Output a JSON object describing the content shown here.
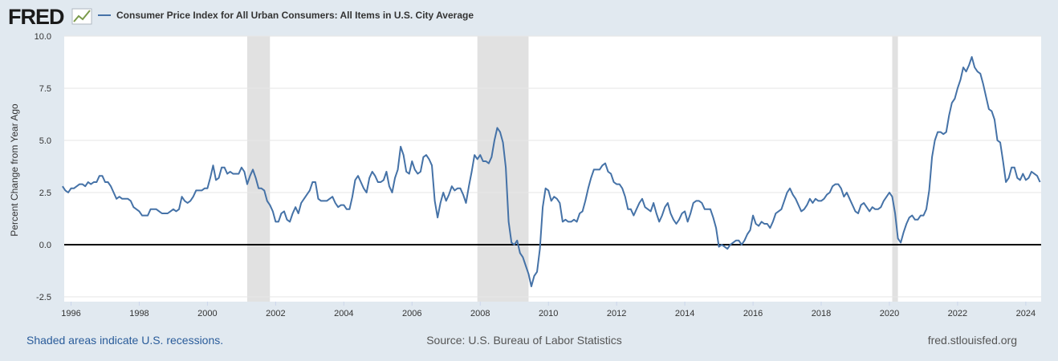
{
  "logo": "FRED",
  "footer": {
    "note": "Shaded areas indicate U.S. recessions.",
    "source": "Source: U.S. Bureau of Labor Statistics",
    "site": "fred.stlouisfed.org"
  },
  "chart_data": {
    "type": "line",
    "y_label": "Percent Change from Year Ago",
    "xlim": [
      1995.8,
      2024.45
    ],
    "xticks": [
      1996,
      1998,
      2000,
      2002,
      2004,
      2006,
      2008,
      2010,
      2012,
      2014,
      2016,
      2018,
      2020,
      2022,
      2024
    ],
    "ylim": [
      -2.5,
      10
    ],
    "yticks": [
      {
        "value": -2.5,
        "label": "-2.5"
      },
      {
        "value": 0,
        "label": "0.0"
      },
      {
        "value": 2.5,
        "label": "2.5"
      },
      {
        "value": 5,
        "label": "5.0"
      },
      {
        "value": 7.5,
        "label": "7.5"
      },
      {
        "value": 10,
        "label": "10.0"
      }
    ],
    "grid": true,
    "recessions": [
      [
        2001.167,
        2001.833
      ],
      [
        2007.917,
        2009.417
      ],
      [
        2020.083,
        2020.25
      ]
    ],
    "series": [
      {
        "name": "Consumer Price Index for All Urban Consumers: All Items in U.S. City Average",
        "color": "#4572a7",
        "x": [
          1995.75,
          1995.833,
          1995.917,
          1996,
          1996.083,
          1996.167,
          1996.25,
          1996.333,
          1996.417,
          1996.5,
          1996.583,
          1996.667,
          1996.75,
          1996.833,
          1996.917,
          1997,
          1997.083,
          1997.167,
          1997.25,
          1997.333,
          1997.417,
          1997.5,
          1997.583,
          1997.667,
          1997.75,
          1997.833,
          1997.917,
          1998,
          1998.083,
          1998.167,
          1998.25,
          1998.333,
          1998.417,
          1998.5,
          1998.583,
          1998.667,
          1998.75,
          1998.833,
          1998.917,
          1999,
          1999.083,
          1999.167,
          1999.25,
          1999.333,
          1999.417,
          1999.5,
          1999.583,
          1999.667,
          1999.75,
          1999.833,
          1999.917,
          2000,
          2000.083,
          2000.167,
          2000.25,
          2000.333,
          2000.417,
          2000.5,
          2000.583,
          2000.667,
          2000.75,
          2000.833,
          2000.917,
          2001,
          2001.083,
          2001.167,
          2001.25,
          2001.333,
          2001.417,
          2001.5,
          2001.583,
          2001.667,
          2001.75,
          2001.833,
          2001.917,
          2002,
          2002.083,
          2002.167,
          2002.25,
          2002.333,
          2002.417,
          2002.5,
          2002.583,
          2002.667,
          2002.75,
          2002.833,
          2002.917,
          2003,
          2003.083,
          2003.167,
          2003.25,
          2003.333,
          2003.417,
          2003.5,
          2003.583,
          2003.667,
          2003.75,
          2003.833,
          2003.917,
          2004,
          2004.083,
          2004.167,
          2004.25,
          2004.333,
          2004.417,
          2004.5,
          2004.583,
          2004.667,
          2004.75,
          2004.833,
          2004.917,
          2005,
          2005.083,
          2005.167,
          2005.25,
          2005.333,
          2005.417,
          2005.5,
          2005.583,
          2005.667,
          2005.75,
          2005.833,
          2005.917,
          2006,
          2006.083,
          2006.167,
          2006.25,
          2006.333,
          2006.417,
          2006.5,
          2006.583,
          2006.667,
          2006.75,
          2006.833,
          2006.917,
          2007,
          2007.083,
          2007.167,
          2007.25,
          2007.333,
          2007.417,
          2007.5,
          2007.583,
          2007.667,
          2007.75,
          2007.833,
          2007.917,
          2008,
          2008.083,
          2008.167,
          2008.25,
          2008.333,
          2008.417,
          2008.5,
          2008.583,
          2008.667,
          2008.75,
          2008.833,
          2008.917,
          2009,
          2009.083,
          2009.167,
          2009.25,
          2009.333,
          2009.417,
          2009.5,
          2009.583,
          2009.667,
          2009.75,
          2009.833,
          2009.917,
          2010,
          2010.083,
          2010.167,
          2010.25,
          2010.333,
          2010.417,
          2010.5,
          2010.583,
          2010.667,
          2010.75,
          2010.833,
          2010.917,
          2011,
          2011.083,
          2011.167,
          2011.25,
          2011.333,
          2011.417,
          2011.5,
          2011.583,
          2011.667,
          2011.75,
          2011.833,
          2011.917,
          2012,
          2012.083,
          2012.167,
          2012.25,
          2012.333,
          2012.417,
          2012.5,
          2012.583,
          2012.667,
          2012.75,
          2012.833,
          2012.917,
          2013,
          2013.083,
          2013.167,
          2013.25,
          2013.333,
          2013.417,
          2013.5,
          2013.583,
          2013.667,
          2013.75,
          2013.833,
          2013.917,
          2014,
          2014.083,
          2014.167,
          2014.25,
          2014.333,
          2014.417,
          2014.5,
          2014.583,
          2014.667,
          2014.75,
          2014.833,
          2014.917,
          2015,
          2015.083,
          2015.167,
          2015.25,
          2015.333,
          2015.417,
          2015.5,
          2015.583,
          2015.667,
          2015.75,
          2015.833,
          2015.917,
          2016,
          2016.083,
          2016.167,
          2016.25,
          2016.333,
          2016.417,
          2016.5,
          2016.583,
          2016.667,
          2016.75,
          2016.833,
          2016.917,
          2017,
          2017.083,
          2017.167,
          2017.25,
          2017.333,
          2017.417,
          2017.5,
          2017.583,
          2017.667,
          2017.75,
          2017.833,
          2017.917,
          2018,
          2018.083,
          2018.167,
          2018.25,
          2018.333,
          2018.417,
          2018.5,
          2018.583,
          2018.667,
          2018.75,
          2018.833,
          2018.917,
          2019,
          2019.083,
          2019.167,
          2019.25,
          2019.333,
          2019.417,
          2019.5,
          2019.583,
          2019.667,
          2019.75,
          2019.833,
          2019.917,
          2020,
          2020.083,
          2020.167,
          2020.25,
          2020.333,
          2020.417,
          2020.5,
          2020.583,
          2020.667,
          2020.75,
          2020.833,
          2020.917,
          2021,
          2021.083,
          2021.167,
          2021.25,
          2021.333,
          2021.417,
          2021.5,
          2021.583,
          2021.667,
          2021.75,
          2021.833,
          2021.917,
          2022,
          2022.083,
          2022.167,
          2022.25,
          2022.333,
          2022.417,
          2022.5,
          2022.583,
          2022.667,
          2022.75,
          2022.833,
          2022.917,
          2023,
          2023.083,
          2023.167,
          2023.25,
          2023.333,
          2023.417,
          2023.5,
          2023.583,
          2023.667,
          2023.75,
          2023.833,
          2023.917,
          2024,
          2024.083,
          2024.167,
          2024.25,
          2024.333,
          2024.417
        ],
        "values": [
          2.8,
          2.6,
          2.5,
          2.7,
          2.7,
          2.8,
          2.9,
          2.9,
          2.8,
          3.0,
          2.9,
          3.0,
          3.0,
          3.3,
          3.3,
          3.0,
          3.0,
          2.8,
          2.5,
          2.2,
          2.3,
          2.2,
          2.2,
          2.2,
          2.1,
          1.8,
          1.7,
          1.6,
          1.4,
          1.4,
          1.4,
          1.7,
          1.7,
          1.7,
          1.6,
          1.5,
          1.5,
          1.5,
          1.6,
          1.7,
          1.6,
          1.7,
          2.3,
          2.1,
          2.0,
          2.1,
          2.3,
          2.6,
          2.6,
          2.6,
          2.7,
          2.7,
          3.2,
          3.8,
          3.1,
          3.2,
          3.7,
          3.7,
          3.4,
          3.5,
          3.4,
          3.4,
          3.4,
          3.7,
          3.5,
          2.9,
          3.3,
          3.6,
          3.2,
          2.7,
          2.7,
          2.6,
          2.1,
          1.9,
          1.6,
          1.1,
          1.1,
          1.5,
          1.6,
          1.2,
          1.1,
          1.5,
          1.8,
          1.5,
          2.0,
          2.2,
          2.4,
          2.6,
          3.0,
          3.0,
          2.2,
          2.1,
          2.1,
          2.1,
          2.2,
          2.3,
          2.0,
          1.8,
          1.9,
          1.9,
          1.7,
          1.7,
          2.3,
          3.1,
          3.3,
          3.0,
          2.7,
          2.5,
          3.2,
          3.5,
          3.3,
          3.0,
          3.0,
          3.1,
          3.5,
          2.8,
          2.5,
          3.2,
          3.6,
          4.7,
          4.3,
          3.5,
          3.4,
          4.0,
          3.6,
          3.4,
          3.5,
          4.2,
          4.3,
          4.1,
          3.8,
          2.1,
          1.3,
          2.0,
          2.5,
          2.1,
          2.4,
          2.8,
          2.6,
          2.7,
          2.7,
          2.4,
          2.0,
          2.8,
          3.5,
          4.3,
          4.1,
          4.3,
          4.0,
          4.0,
          3.9,
          4.2,
          5.0,
          5.6,
          5.4,
          4.9,
          3.7,
          1.1,
          0.1,
          0.0,
          0.2,
          -0.4,
          -0.6,
          -1.0,
          -1.4,
          -2.0,
          -1.5,
          -1.3,
          -0.2,
          1.8,
          2.7,
          2.6,
          2.1,
          2.3,
          2.2,
          2.0,
          1.1,
          1.2,
          1.1,
          1.1,
          1.2,
          1.1,
          1.5,
          1.6,
          2.1,
          2.7,
          3.2,
          3.6,
          3.6,
          3.6,
          3.8,
          3.9,
          3.5,
          3.4,
          3.0,
          2.9,
          2.9,
          2.7,
          2.3,
          1.7,
          1.7,
          1.4,
          1.7,
          2.0,
          2.2,
          1.8,
          1.7,
          1.6,
          2.0,
          1.5,
          1.1,
          1.4,
          1.8,
          2.0,
          1.5,
          1.2,
          1.0,
          1.2,
          1.5,
          1.6,
          1.1,
          1.5,
          2.0,
          2.1,
          2.1,
          2.0,
          1.7,
          1.7,
          1.7,
          1.3,
          0.8,
          -0.1,
          0.0,
          -0.1,
          -0.2,
          0.0,
          0.1,
          0.2,
          0.2,
          0.0,
          0.2,
          0.5,
          0.7,
          1.4,
          1.0,
          0.9,
          1.1,
          1.0,
          1.0,
          0.8,
          1.1,
          1.5,
          1.6,
          1.7,
          2.1,
          2.5,
          2.7,
          2.4,
          2.2,
          1.9,
          1.6,
          1.7,
          1.9,
          2.2,
          2.0,
          2.2,
          2.1,
          2.1,
          2.2,
          2.4,
          2.5,
          2.8,
          2.9,
          2.9,
          2.7,
          2.3,
          2.5,
          2.2,
          1.9,
          1.6,
          1.5,
          1.9,
          2.0,
          1.8,
          1.6,
          1.8,
          1.7,
          1.7,
          1.8,
          2.1,
          2.3,
          2.5,
          2.3,
          1.5,
          0.3,
          0.1,
          0.6,
          1.0,
          1.3,
          1.4,
          1.2,
          1.2,
          1.4,
          1.4,
          1.7,
          2.6,
          4.2,
          5.0,
          5.4,
          5.4,
          5.3,
          5.4,
          6.2,
          6.8,
          7.0,
          7.5,
          7.9,
          8.5,
          8.3,
          8.6,
          9.0,
          8.5,
          8.3,
          8.2,
          7.7,
          7.1,
          6.5,
          6.4,
          6.0,
          5.0,
          4.9,
          4.0,
          3.0,
          3.2,
          3.7,
          3.7,
          3.2,
          3.1,
          3.4,
          3.1,
          3.2,
          3.5,
          3.4,
          3.3,
          3.0
        ]
      }
    ]
  }
}
